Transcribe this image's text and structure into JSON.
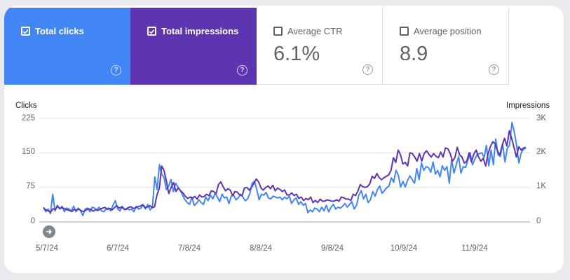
{
  "metrics": {
    "clicks": {
      "label": "Total clicks",
      "checked": true
    },
    "impressions": {
      "label": "Total impressions",
      "checked": true
    },
    "ctr": {
      "label": "Average CTR",
      "value": "6.1%",
      "checked": false
    },
    "position": {
      "label": "Average position",
      "value": "8.9",
      "checked": false
    },
    "help_glyph": "?"
  },
  "colors": {
    "clicks": "#4285f4",
    "impressions": "#5e35b1",
    "grid": "#e0e0e0"
  },
  "chart_data": {
    "type": "line",
    "ylabel_left": "Clicks",
    "ylabel_right": "Impressions",
    "left_ticks": [
      "225",
      "150",
      "75",
      "0"
    ],
    "right_ticks": [
      "3K",
      "2K",
      "1K",
      "0"
    ],
    "ylim_left": [
      0,
      225
    ],
    "ylim_right": [
      0,
      3000
    ],
    "x_ticks": [
      "5/7/24",
      "6/7/24",
      "7/8/24",
      "8/8/24",
      "9/8/24",
      "10/9/24",
      "11/9/24"
    ],
    "x_range": [
      "5/7/24",
      "12/7/24"
    ],
    "grid": true,
    "series": [
      {
        "name": "Clicks",
        "axis": "left",
        "values": [
          32,
          22,
          28,
          18,
          60,
          24,
          36,
          28,
          34,
          22,
          30,
          28,
          24,
          34,
          22,
          30,
          24,
          14,
          28,
          30,
          22,
          32,
          30,
          26,
          32,
          24,
          22,
          28,
          30,
          24,
          36,
          46,
          28,
          24,
          34,
          26,
          30,
          26,
          28,
          22,
          34,
          28,
          30,
          36,
          28,
          38,
          26,
          34,
          98,
          70,
          124,
          104,
          96,
          70,
          78,
          92,
          66,
          84,
          76,
          68,
          58,
          48,
          42,
          38,
          54,
          36,
          40,
          48,
          42,
          38,
          54,
          46,
          58,
          50,
          62,
          54,
          44,
          60,
          52,
          54,
          40,
          56,
          58,
          48,
          52,
          60,
          54,
          46,
          50,
          62,
          84,
          88,
          70,
          48,
          60,
          58,
          64,
          52,
          50,
          56,
          54,
          52,
          54,
          48,
          54,
          50,
          56,
          40,
          48,
          52,
          38,
          44,
          36,
          40,
          20,
          26,
          22,
          30,
          28,
          22,
          32,
          24,
          36,
          22,
          32,
          38,
          28,
          32,
          30,
          34,
          40,
          32,
          38,
          44,
          28,
          36,
          58,
          68,
          50,
          60,
          42,
          48,
          66,
          56,
          70,
          78,
          62,
          68,
          74,
          78,
          96,
          86,
          112,
          102,
          76,
          88,
          76,
          90,
          100,
          92,
          84,
          116,
          92,
          128,
          112,
          120,
          118,
          108,
          130,
          104,
          112,
          98,
          122,
          112,
          120,
          84,
          136,
          106,
          124,
          142,
          106,
          120,
          118,
          134,
          150,
          124,
          136,
          146,
          148,
          150,
          140,
          166,
          122,
          156,
          124,
          180,
          146,
          142,
          170,
          130,
          160,
          166,
          216,
          196,
          166,
          128,
          150,
          158,
          160
        ]
      },
      {
        "name": "Impressions",
        "axis": "right",
        "values": [
          400,
          350,
          320,
          280,
          380,
          360,
          450,
          390,
          410,
          380,
          350,
          330,
          300,
          360,
          340,
          370,
          320,
          300,
          340,
          380,
          360,
          310,
          350,
          330,
          370,
          400,
          420,
          360,
          390,
          350,
          410,
          470,
          400,
          430,
          380,
          360,
          420,
          440,
          390,
          410,
          440,
          460,
          500,
          420,
          430,
          470,
          410,
          440,
          780,
          980,
          1620,
          1480,
          1180,
          820,
          1000,
          1140,
          880,
          980,
          900,
          840,
          740,
          680,
          720,
          680,
          740,
          660,
          780,
          720,
          740,
          800,
          760,
          900,
          880,
          820,
          1080,
          1160,
          1020,
          900,
          960,
          920,
          760,
          880,
          860,
          780,
          760,
          980,
          1000,
          920,
          1000,
          1120,
          1240,
          1160,
          980,
          920,
          1000,
          1040,
          960,
          1060,
          900,
          980,
          940,
          880,
          920,
          780,
          780,
          840,
          760,
          800,
          680,
          720,
          620,
          680,
          640,
          720,
          560,
          620,
          560,
          660,
          600,
          600,
          640,
          620,
          600,
          600,
          640,
          600,
          720,
          700,
          660,
          660,
          620,
          800,
          760,
          900,
          1080,
          1020,
          1000,
          1020,
          1100,
          1320,
          1260,
          1400,
          1280,
          1220,
          1280,
          1320,
          1360,
          1500,
          1860,
          1720,
          2080,
          1940,
          1680,
          1720,
          1620,
          2000,
          1980,
          1880,
          1760,
          1980,
          1760,
          1980,
          2060,
          1960,
          1880,
          1980,
          1900,
          1860,
          2020,
          1880,
          2140,
          2120,
          1980,
          1760,
          1860,
          2160,
          1940,
          1880,
          1700,
          1760,
          2000,
          1740,
          1960,
          2080,
          1880,
          1760,
          1840,
          1620,
          1960,
          2180,
          2320,
          2260,
          2060,
          1940,
          2220,
          2420,
          2200,
          2640,
          2420,
          2160,
          1880,
          2180,
          2080,
          2140,
          2160
        ]
      }
    ]
  }
}
